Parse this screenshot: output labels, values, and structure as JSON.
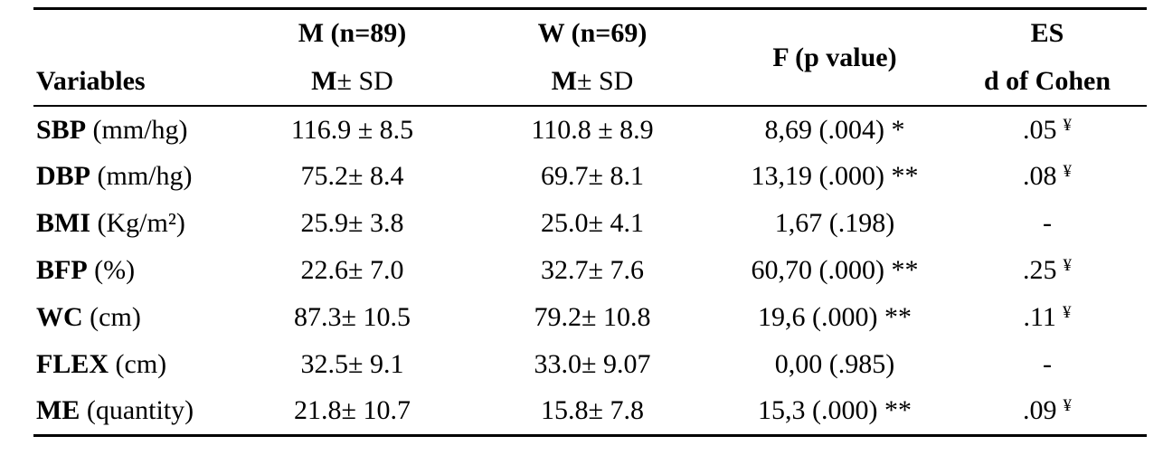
{
  "table": {
    "header": {
      "variables": "Variables",
      "m_group": "M (n=89)",
      "m_sub_bold": "M",
      "m_sub_rest": " ± SD",
      "w_group": "W (n=69)",
      "w_sub_bold": "M",
      "w_sub_rest": " ± SD",
      "f": "F (p value)",
      "es_line1": "ES",
      "es_line2": "d of Cohen"
    },
    "rows": [
      {
        "var_bold": "SBP",
        "var_rest": " (mm/hg)",
        "m": "116.9 ± 8.5",
        "w": "110.8 ± 8.9",
        "f": "8,69 (.004) *",
        "es": ".05",
        "es_sup": "¥"
      },
      {
        "var_bold": "DBP",
        "var_rest": " (mm/hg)",
        "m": "75.2± 8.4",
        "w": "69.7± 8.1",
        "f": "13,19 (.000) **",
        "es": ".08",
        "es_sup": "¥"
      },
      {
        "var_bold": "BMI",
        "var_rest": " (Kg/m²)",
        "m": "25.9± 3.8",
        "w": "25.0± 4.1",
        "f": "1,67 (.198)",
        "es": "-",
        "es_sup": ""
      },
      {
        "var_bold": "BFP",
        "var_rest": " (%)",
        "m": "22.6± 7.0",
        "w": "32.7± 7.6",
        "f": "60,70 (.000) **",
        "es": ".25",
        "es_sup": "¥"
      },
      {
        "var_bold": "WC",
        "var_rest": " (cm)",
        "m": "87.3± 10.5",
        "w": "79.2± 10.8",
        "f": "19,6 (.000) **",
        "es": ".11",
        "es_sup": "¥"
      },
      {
        "var_bold": "FLEX",
        "var_rest": " (cm)",
        "m": "32.5± 9.1",
        "w": "33.0± 9.07",
        "f": "0,00 (.985)",
        "es": "-",
        "es_sup": ""
      },
      {
        "var_bold": "ME",
        "var_rest": " (quantity)",
        "m": "21.8± 10.7",
        "w": "15.8± 7.8",
        "f": "15,3 (.000) **",
        "es": ".09",
        "es_sup": "¥"
      }
    ]
  },
  "colors": {
    "text": "#000000",
    "background": "#ffffff",
    "rule": "#000000"
  }
}
